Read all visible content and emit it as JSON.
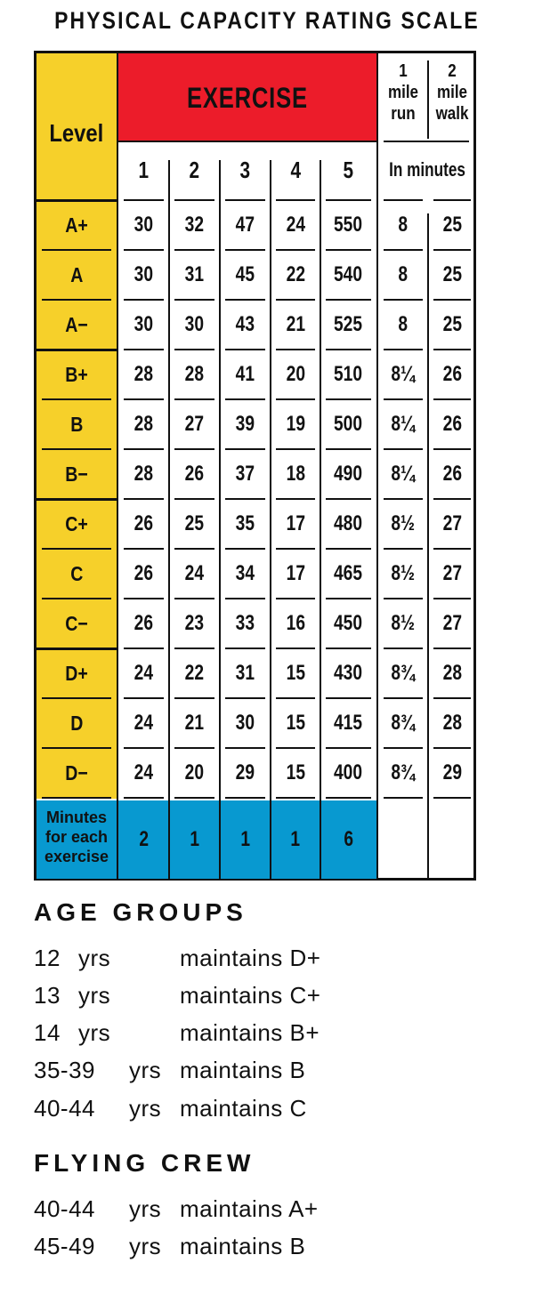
{
  "title": "PHYSICAL CAPACITY RATING SCALE",
  "table": {
    "level_header": "Level",
    "exercise_header": "EXERCISE",
    "exercise_numbers": [
      "1",
      "2",
      "3",
      "4",
      "5"
    ],
    "run_header": [
      "1",
      "mile",
      "run"
    ],
    "walk_header": [
      "2",
      "mile",
      "walk"
    ],
    "minutes_header": "In minutes",
    "rows": [
      {
        "level": "A+",
        "values": [
          "30",
          "32",
          "47",
          "24",
          "550",
          "8",
          "25"
        ]
      },
      {
        "level": "A",
        "values": [
          "30",
          "31",
          "45",
          "22",
          "540",
          "8",
          "25"
        ]
      },
      {
        "level": "A−",
        "values": [
          "30",
          "30",
          "43",
          "21",
          "525",
          "8",
          "25"
        ]
      },
      {
        "level": "B+",
        "values": [
          "28",
          "28",
          "41",
          "20",
          "510",
          "8¼",
          "26"
        ]
      },
      {
        "level": "B",
        "values": [
          "28",
          "27",
          "39",
          "19",
          "500",
          "8¼",
          "26"
        ]
      },
      {
        "level": "B−",
        "values": [
          "28",
          "26",
          "37",
          "18",
          "490",
          "8¼",
          "26"
        ]
      },
      {
        "level": "C+",
        "values": [
          "26",
          "25",
          "35",
          "17",
          "480",
          "8½",
          "27"
        ]
      },
      {
        "level": "C",
        "values": [
          "26",
          "24",
          "34",
          "17",
          "465",
          "8½",
          "27"
        ]
      },
      {
        "level": "C−",
        "values": [
          "26",
          "23",
          "33",
          "16",
          "450",
          "8½",
          "27"
        ]
      },
      {
        "level": "D+",
        "values": [
          "24",
          "22",
          "31",
          "15",
          "430",
          "8¾",
          "28"
        ]
      },
      {
        "level": "D",
        "values": [
          "24",
          "21",
          "30",
          "15",
          "415",
          "8¾",
          "28"
        ]
      },
      {
        "level": "D−",
        "values": [
          "24",
          "20",
          "29",
          "15",
          "400",
          "8¾",
          "29"
        ]
      }
    ],
    "minutes_row_label": [
      "Minutes",
      "for each",
      "exercise"
    ],
    "minutes_row_values": [
      "2",
      "1",
      "1",
      "1",
      "6"
    ],
    "colors": {
      "level": "#f6d02a",
      "exercise": "#ec1c2a",
      "minutes": "#0899d0"
    }
  },
  "age_groups": {
    "heading": "AGE GROUPS",
    "items": [
      {
        "age": "12",
        "unit": "yrs",
        "text": "maintains D+"
      },
      {
        "age": "13",
        "unit": "yrs",
        "text": "maintains C+"
      },
      {
        "age": "14",
        "unit": "yrs",
        "text": "maintains B+"
      },
      {
        "age": "35-39",
        "unit": "yrs",
        "text": "maintains B"
      },
      {
        "age": "40-44",
        "unit": "yrs",
        "text": "maintains C"
      }
    ]
  },
  "flying_crew": {
    "heading": "FLYING CREW",
    "items": [
      {
        "age": "40-44",
        "unit": "yrs",
        "text": "maintains A+"
      },
      {
        "age": "45-49",
        "unit": "yrs",
        "text": "maintains B"
      }
    ]
  }
}
